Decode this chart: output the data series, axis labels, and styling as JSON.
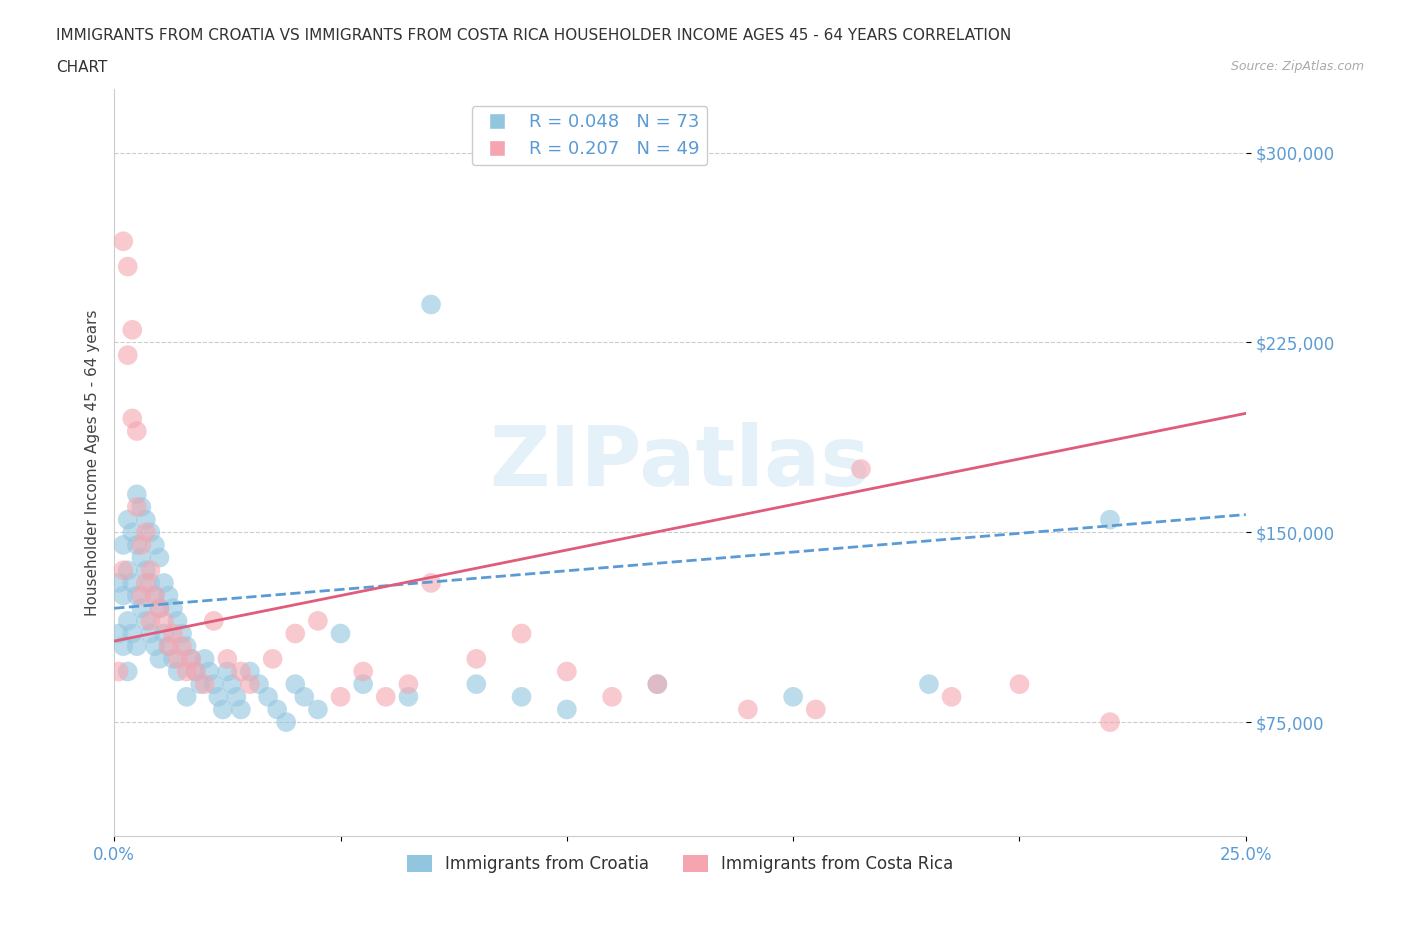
{
  "title_line1": "IMMIGRANTS FROM CROATIA VS IMMIGRANTS FROM COSTA RICA HOUSEHOLDER INCOME AGES 45 - 64 YEARS CORRELATION",
  "title_line2": "CHART",
  "source": "Source: ZipAtlas.com",
  "ylabel": "Householder Income Ages 45 - 64 years",
  "xlim": [
    0.0,
    0.25
  ],
  "ylim": [
    30000,
    325000
  ],
  "yticks": [
    75000,
    150000,
    225000,
    300000
  ],
  "xticks": [
    0.0,
    0.05,
    0.1,
    0.15,
    0.2,
    0.25
  ],
  "croatia_color": "#92c5de",
  "costa_rica_color": "#f4a5b0",
  "croatia_line_color": "#5b9bd5",
  "costa_rica_line_color": "#e05c7a",
  "croatia_R": 0.048,
  "croatia_N": 73,
  "costa_rica_R": 0.207,
  "costa_rica_N": 49,
  "background_color": "#ffffff",
  "croatia_x": [
    0.001,
    0.001,
    0.002,
    0.002,
    0.002,
    0.003,
    0.003,
    0.003,
    0.003,
    0.004,
    0.004,
    0.004,
    0.005,
    0.005,
    0.005,
    0.005,
    0.006,
    0.006,
    0.006,
    0.007,
    0.007,
    0.007,
    0.008,
    0.008,
    0.008,
    0.009,
    0.009,
    0.009,
    0.01,
    0.01,
    0.01,
    0.011,
    0.011,
    0.012,
    0.012,
    0.013,
    0.013,
    0.014,
    0.014,
    0.015,
    0.016,
    0.016,
    0.017,
    0.018,
    0.019,
    0.02,
    0.021,
    0.022,
    0.023,
    0.024,
    0.025,
    0.026,
    0.027,
    0.028,
    0.03,
    0.032,
    0.034,
    0.036,
    0.038,
    0.04,
    0.042,
    0.045,
    0.05,
    0.055,
    0.065,
    0.07,
    0.08,
    0.09,
    0.1,
    0.12,
    0.15,
    0.18,
    0.22
  ],
  "croatia_y": [
    130000,
    110000,
    145000,
    125000,
    105000,
    155000,
    135000,
    115000,
    95000,
    150000,
    130000,
    110000,
    165000,
    145000,
    125000,
    105000,
    160000,
    140000,
    120000,
    155000,
    135000,
    115000,
    150000,
    130000,
    110000,
    145000,
    125000,
    105000,
    140000,
    120000,
    100000,
    130000,
    110000,
    125000,
    105000,
    120000,
    100000,
    115000,
    95000,
    110000,
    105000,
    85000,
    100000,
    95000,
    90000,
    100000,
    95000,
    90000,
    85000,
    80000,
    95000,
    90000,
    85000,
    80000,
    95000,
    90000,
    85000,
    80000,
    75000,
    90000,
    85000,
    80000,
    110000,
    90000,
    85000,
    240000,
    90000,
    85000,
    80000,
    90000,
    85000,
    90000,
    155000
  ],
  "costa_rica_x": [
    0.001,
    0.002,
    0.002,
    0.003,
    0.003,
    0.004,
    0.004,
    0.005,
    0.005,
    0.006,
    0.006,
    0.007,
    0.007,
    0.008,
    0.008,
    0.009,
    0.01,
    0.011,
    0.012,
    0.013,
    0.014,
    0.015,
    0.016,
    0.017,
    0.018,
    0.02,
    0.022,
    0.025,
    0.028,
    0.03,
    0.035,
    0.04,
    0.045,
    0.05,
    0.055,
    0.06,
    0.065,
    0.07,
    0.08,
    0.09,
    0.1,
    0.11,
    0.12,
    0.14,
    0.155,
    0.165,
    0.185,
    0.2,
    0.22
  ],
  "costa_rica_y": [
    95000,
    265000,
    135000,
    255000,
    220000,
    230000,
    195000,
    190000,
    160000,
    145000,
    125000,
    150000,
    130000,
    135000,
    115000,
    125000,
    120000,
    115000,
    105000,
    110000,
    100000,
    105000,
    95000,
    100000,
    95000,
    90000,
    115000,
    100000,
    95000,
    90000,
    100000,
    110000,
    115000,
    85000,
    95000,
    85000,
    90000,
    130000,
    100000,
    110000,
    95000,
    85000,
    90000,
    80000,
    80000,
    175000,
    85000,
    90000,
    75000
  ]
}
